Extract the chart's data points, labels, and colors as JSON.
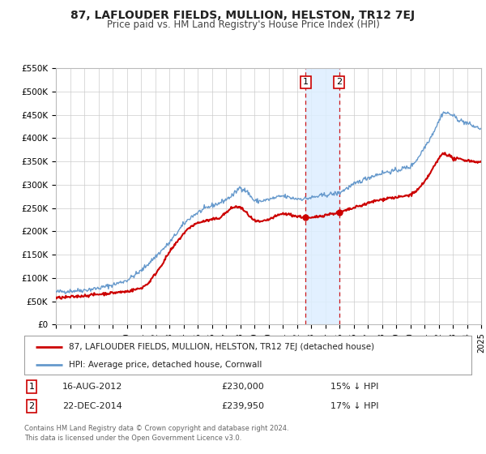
{
  "title": "87, LAFLOUDER FIELDS, MULLION, HELSTON, TR12 7EJ",
  "subtitle": "Price paid vs. HM Land Registry's House Price Index (HPI)",
  "legend_label_red": "87, LAFLOUDER FIELDS, MULLION, HELSTON, TR12 7EJ (detached house)",
  "legend_label_blue": "HPI: Average price, detached house, Cornwall",
  "transaction1_date": "16-AUG-2012",
  "transaction1_price": "£230,000",
  "transaction1_hpi": "15% ↓ HPI",
  "transaction2_date": "22-DEC-2014",
  "transaction2_price": "£239,950",
  "transaction2_hpi": "17% ↓ HPI",
  "footer1": "Contains HM Land Registry data © Crown copyright and database right 2024.",
  "footer2": "This data is licensed under the Open Government Licence v3.0.",
  "ylim": [
    0,
    550000
  ],
  "yticks": [
    0,
    50000,
    100000,
    150000,
    200000,
    250000,
    300000,
    350000,
    400000,
    450000,
    500000,
    550000
  ],
  "ytick_labels": [
    "£0",
    "£50K",
    "£100K",
    "£150K",
    "£200K",
    "£250K",
    "£300K",
    "£350K",
    "£400K",
    "£450K",
    "£500K",
    "£550K"
  ],
  "color_red": "#cc0000",
  "color_blue": "#6699cc",
  "bg_color": "#ffffff",
  "grid_color": "#cccccc",
  "transaction1_x": 2012.62,
  "transaction2_x": 2014.98,
  "transaction1_y": 230000,
  "transaction2_y": 239950,
  "shade_x1": 2012.62,
  "shade_x2": 2014.98,
  "xlim_left": 1995,
  "xlim_right": 2025
}
